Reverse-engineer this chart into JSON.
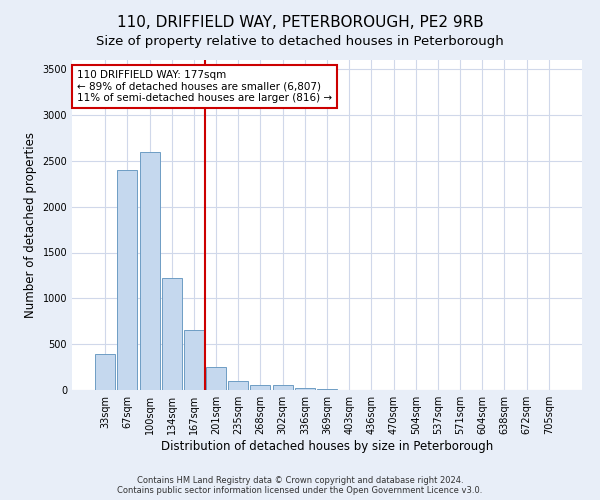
{
  "title": "110, DRIFFIELD WAY, PETERBOROUGH, PE2 9RB",
  "subtitle": "Size of property relative to detached houses in Peterborough",
  "xlabel": "Distribution of detached houses by size in Peterborough",
  "ylabel": "Number of detached properties",
  "categories": [
    "33sqm",
    "67sqm",
    "100sqm",
    "134sqm",
    "167sqm",
    "201sqm",
    "235sqm",
    "268sqm",
    "302sqm",
    "336sqm",
    "369sqm",
    "403sqm",
    "436sqm",
    "470sqm",
    "504sqm",
    "537sqm",
    "571sqm",
    "604sqm",
    "638sqm",
    "672sqm",
    "705sqm"
  ],
  "values": [
    390,
    2400,
    2600,
    1220,
    650,
    250,
    100,
    60,
    50,
    20,
    10,
    5,
    3,
    2,
    1,
    1,
    0,
    0,
    0,
    0,
    0
  ],
  "bar_color": "#c5d8ee",
  "bar_edge_color": "#6e9dc4",
  "red_line_x": 4.52,
  "annotation_line1": "110 DRIFFIELD WAY: 177sqm",
  "annotation_line2": "← 89% of detached houses are smaller (6,807)",
  "annotation_line3": "11% of semi-detached houses are larger (816) →",
  "annotation_box_color": "#ffffff",
  "annotation_box_edge_color": "#cc0000",
  "red_line_color": "#cc0000",
  "footer": "Contains HM Land Registry data © Crown copyright and database right 2024.\nContains public sector information licensed under the Open Government Licence v3.0.",
  "ylim": [
    0,
    3600
  ],
  "yticks": [
    0,
    500,
    1000,
    1500,
    2000,
    2500,
    3000,
    3500
  ],
  "grid_color": "#d0d8ea",
  "background_color": "#e8eef8",
  "plot_background": "#ffffff",
  "title_fontsize": 11,
  "subtitle_fontsize": 9.5,
  "label_fontsize": 8.5,
  "tick_fontsize": 7,
  "footer_fontsize": 6,
  "annotation_fontsize": 7.5
}
